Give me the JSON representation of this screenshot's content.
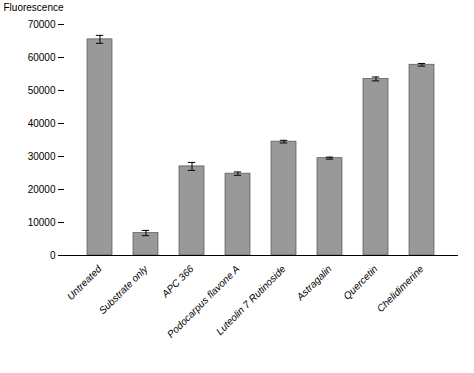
{
  "chart_data": {
    "type": "bar",
    "categories": [
      "Untreated",
      "Substrate only",
      "APC 366",
      "Podocarpus flavone A",
      "Luteolin 7 Rutinoside",
      "Astragalin",
      "Quercetin",
      "Chelidimerine"
    ],
    "values": [
      65500,
      6800,
      27000,
      24800,
      34500,
      29500,
      53500,
      57800
    ],
    "errors": [
      1200,
      800,
      1200,
      500,
      400,
      300,
      600,
      400
    ],
    "color": "#999999",
    "ylabel": "Fluorescence",
    "ylim": [
      0,
      70000
    ],
    "yticks": [
      0,
      10000,
      20000,
      30000,
      40000,
      50000,
      60000,
      70000
    ],
    "grid": false
  }
}
